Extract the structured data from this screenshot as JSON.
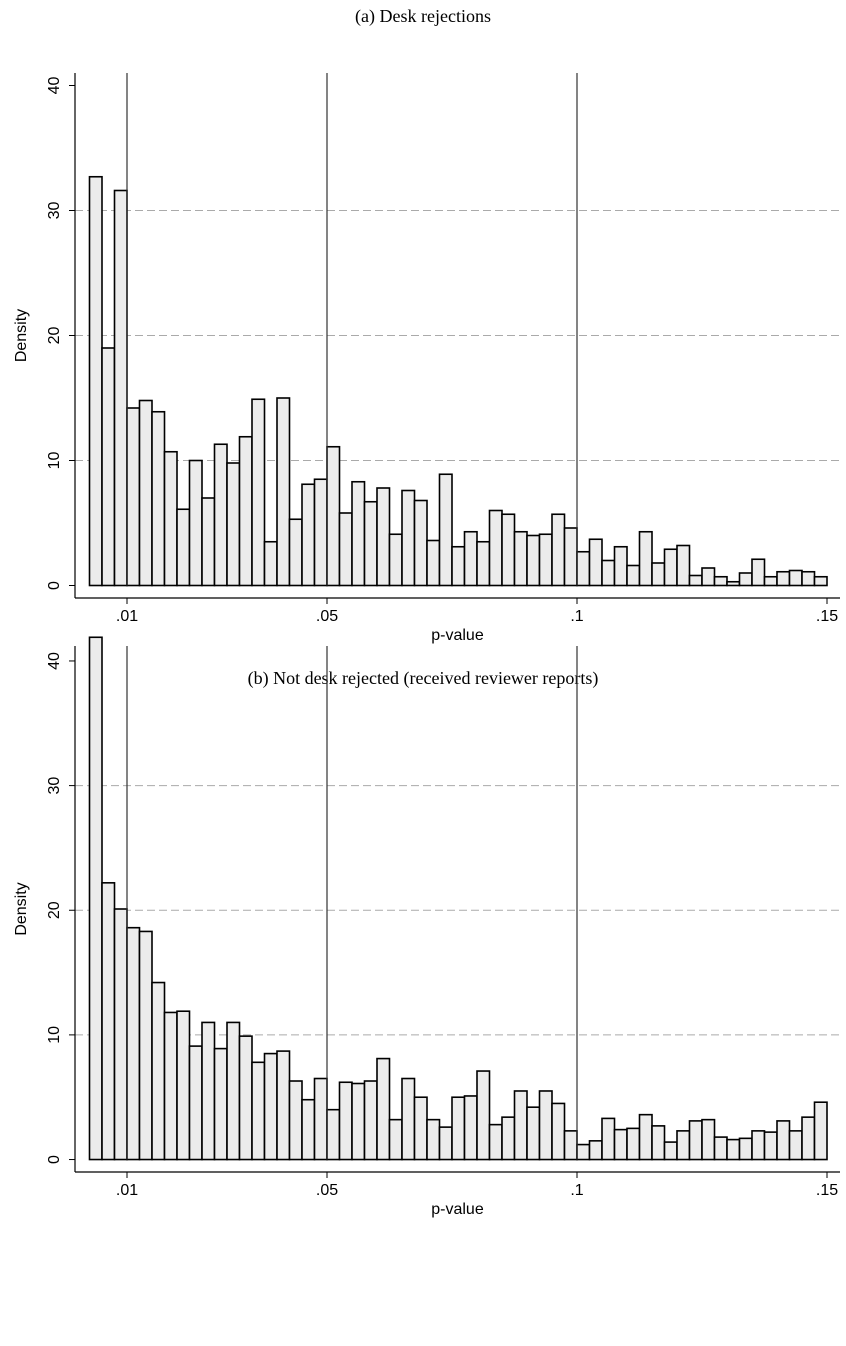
{
  "chart_data": [
    {
      "type": "histogram",
      "title": "(a) Desk rejections",
      "x_label": "p-value",
      "y_label": "Density",
      "bins": [
        0.0025,
        0.005,
        0.0075,
        0.01,
        0.0125,
        0.015,
        0.0175,
        0.02,
        0.0225,
        0.025,
        0.0275,
        0.03,
        0.0325,
        0.035,
        0.0375,
        0.04,
        0.0425,
        0.045,
        0.0475,
        0.05,
        0.0525,
        0.055,
        0.0575,
        0.06,
        0.0625,
        0.065,
        0.0675,
        0.07,
        0.0725,
        0.075,
        0.0775,
        0.08,
        0.0825,
        0.085,
        0.0875,
        0.09,
        0.0925,
        0.095,
        0.0975,
        0.1,
        0.1025,
        0.105,
        0.1075,
        0.11,
        0.1125,
        0.115,
        0.1175,
        0.12,
        0.1225,
        0.125,
        0.1275,
        0.13,
        0.1325,
        0.135,
        0.1375,
        0.14,
        0.1425,
        0.145,
        0.1475,
        0.15
      ],
      "values": [
        32.7,
        19,
        31.6,
        14.2,
        14.8,
        13.9,
        10.7,
        6.1,
        10,
        7,
        11.3,
        9.8,
        11.9,
        14.9,
        3.5,
        15,
        5.3,
        8.1,
        8.5,
        11.1,
        5.8,
        8.3,
        6.7,
        7.8,
        4.1,
        7.6,
        6.8,
        3.6,
        8.9,
        3.1,
        4.3,
        3.5,
        6,
        5.7,
        4.3,
        4,
        4.1,
        5.7,
        4.6,
        2.7,
        3.7,
        2,
        3.1,
        1.6,
        4.3,
        1.8,
        2.9,
        3.2,
        0.8,
        1.4,
        0.7,
        0.3,
        1,
        2.1,
        0.7,
        1.1,
        1.2,
        1.1,
        0.7
      ],
      "color": "#ececec",
      "xlim": [
        -0.0004,
        0.1526
      ],
      "ylim": [
        -1,
        41
      ],
      "xticks": [
        {
          "value": 0.01,
          "label": ".01"
        },
        {
          "value": 0.05,
          "label": ".05"
        },
        {
          "value": 0.1,
          "label": ".1"
        },
        {
          "value": 0.15,
          "label": ".15"
        }
      ],
      "yticks": [
        0,
        10,
        20,
        30,
        40
      ],
      "grid_lines": [
        10,
        20,
        30
      ],
      "reference_lines": [
        0.01,
        0.05,
        0.1
      ]
    },
    {
      "type": "histogram",
      "title": "(b) Not desk rejected (received reviewer reports)",
      "x_label": "p-value",
      "y_label": "Density",
      "bins": [
        0.0025,
        0.005,
        0.0075,
        0.01,
        0.0125,
        0.015,
        0.0175,
        0.02,
        0.0225,
        0.025,
        0.0275,
        0.03,
        0.0325,
        0.035,
        0.0375,
        0.04,
        0.0425,
        0.045,
        0.0475,
        0.05,
        0.0525,
        0.055,
        0.0575,
        0.06,
        0.0625,
        0.065,
        0.0675,
        0.07,
        0.0725,
        0.075,
        0.0775,
        0.08,
        0.0825,
        0.085,
        0.0875,
        0.09,
        0.0925,
        0.095,
        0.0975,
        0.1,
        0.1025,
        0.105,
        0.1075,
        0.11,
        0.1125,
        0.115,
        0.1175,
        0.12,
        0.1225,
        0.125,
        0.1275,
        0.13,
        0.1325,
        0.135,
        0.1375,
        0.14,
        0.1425,
        0.145,
        0.1475,
        0.15
      ],
      "values": [
        41.9,
        22.2,
        20.1,
        18.6,
        18.3,
        14.2,
        11.8,
        11.9,
        9.1,
        11,
        8.9,
        11,
        9.9,
        7.8,
        8.5,
        8.7,
        6.3,
        4.8,
        6.5,
        4,
        6.2,
        6.1,
        6.3,
        8.1,
        3.2,
        6.5,
        5,
        3.2,
        2.6,
        5,
        5.1,
        7.1,
        2.8,
        3.4,
        5.5,
        4.2,
        5.5,
        4.5,
        2.3,
        1.2,
        1.5,
        3.3,
        2.4,
        2.5,
        3.6,
        2.7,
        1.4,
        2.3,
        3.1,
        3.2,
        1.8,
        1.6,
        1.7,
        2.3,
        2.2,
        3.1,
        2.3,
        3.4,
        4.6
      ],
      "color": "#ececec",
      "xlim": [
        -0.0004,
        0.1526
      ],
      "ylim": [
        -1,
        41.2
      ],
      "xticks": [
        {
          "value": 0.01,
          "label": ".01"
        },
        {
          "value": 0.05,
          "label": ".05"
        },
        {
          "value": 0.1,
          "label": ".1"
        },
        {
          "value": 0.15,
          "label": ".15"
        }
      ],
      "yticks": [
        0,
        10,
        20,
        30,
        40
      ],
      "grid_lines": [
        10,
        20,
        30
      ],
      "reference_lines": [
        0.01,
        0.05,
        0.1
      ]
    }
  ]
}
